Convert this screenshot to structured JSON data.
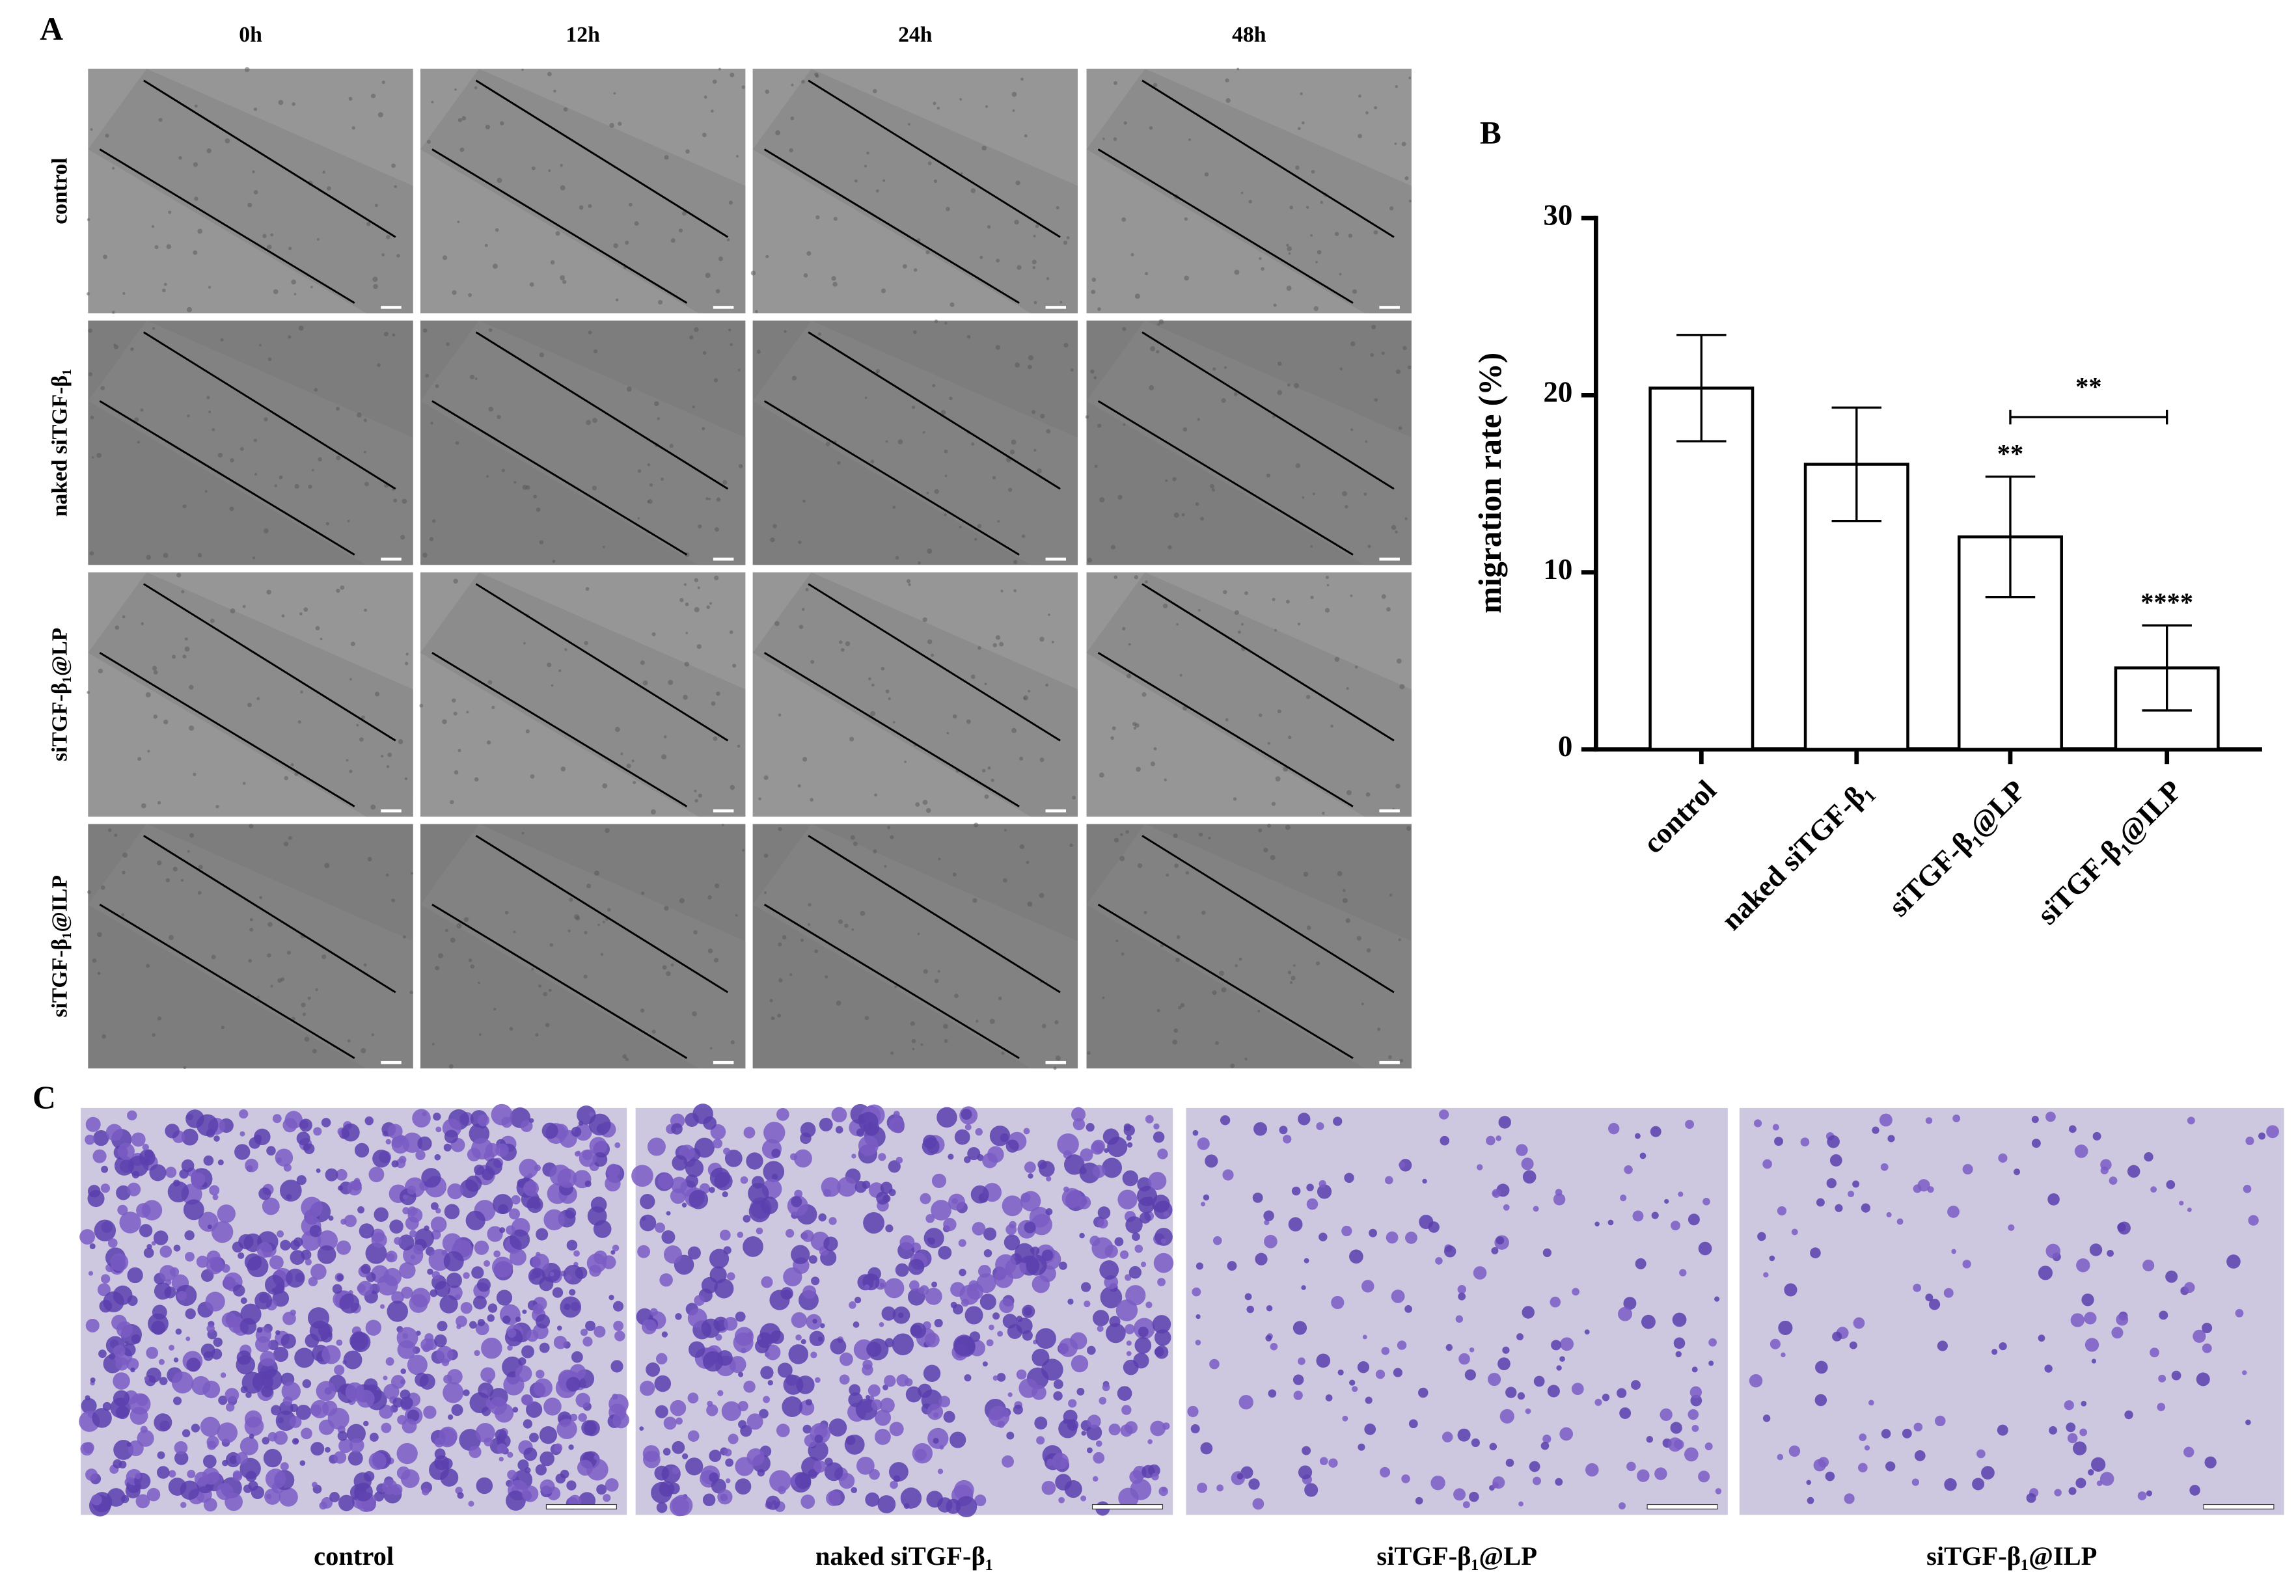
{
  "panel_a": {
    "label": "A",
    "columns": [
      "0h",
      "12h",
      "24h",
      "48h"
    ],
    "rows": [
      "control",
      "naked siTGF-β₁",
      "siTGF-β₁@LP",
      "siTGF-β₁@ILP"
    ]
  },
  "chart_data": {
    "type": "bar",
    "panel_label": "B",
    "y_label": "migration rate (%)",
    "categories": [
      "control",
      "naked siTGF-β₁",
      "siTGF-β₁@LP",
      "siTGF-β₁@ILP"
    ],
    "values": [
      20.4,
      16.1,
      12.0,
      4.6
    ],
    "error": [
      3.0,
      3.2,
      3.4,
      2.4
    ],
    "color": "#ffffff",
    "ylim": [
      0,
      30
    ],
    "yticks": [
      0,
      10,
      20,
      30
    ],
    "annotations": [
      "**",
      "****",
      "**"
    ]
  },
  "panel_c": {
    "label": "C",
    "captions": [
      "control",
      "naked siTGF-β₁",
      "siTGF-β₁@LP",
      "siTGF-β₁@ILP"
    ]
  }
}
